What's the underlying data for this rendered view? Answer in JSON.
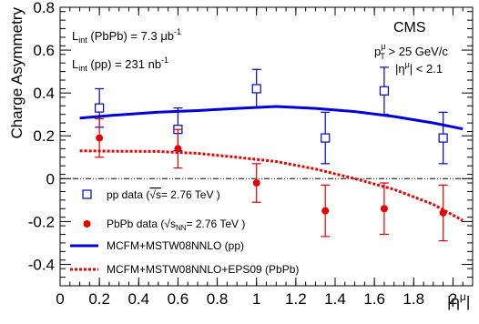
{
  "chart_data": {
    "type": "scatter",
    "xlabel": "|η^μ|",
    "ylabel": "Charge Asymmetry",
    "xlim": [
      0,
      2.1
    ],
    "ylim": [
      -0.5,
      0.8
    ],
    "xticks": [
      0,
      0.2,
      0.4,
      0.6,
      0.8,
      1,
      1.2,
      1.4,
      1.6,
      1.8,
      2
    ],
    "xtick_labels": [
      "0",
      "0.2",
      "0.4",
      "0.6",
      "0.8",
      "1",
      "1.2",
      "1.4",
      "1.6",
      "1.8",
      "2"
    ],
    "yticks": [
      -0.4,
      -0.2,
      0,
      0.2,
      0.4,
      0.6,
      0.8
    ],
    "ytick_labels": [
      "-0.4",
      "-0.2",
      "0",
      "0.2",
      "0.4",
      "0.6",
      "0.8"
    ],
    "reference_line_y": 0,
    "series": [
      {
        "name": "pp data (√s= 2.76 TeV )",
        "marker": "open-square",
        "color": "#0000cc",
        "points": [
          {
            "x": 0.2,
            "y": 0.33,
            "err": 0.09
          },
          {
            "x": 0.6,
            "y": 0.23,
            "err": 0.1
          },
          {
            "x": 1.0,
            "y": 0.42,
            "err": 0.09
          },
          {
            "x": 1.35,
            "y": 0.19,
            "err": 0.12
          },
          {
            "x": 1.65,
            "y": 0.41,
            "err": 0.11
          },
          {
            "x": 1.95,
            "y": 0.19,
            "err": 0.12
          }
        ]
      },
      {
        "name": "PbPb data (√sNN= 2.76 TeV )",
        "marker": "filled-circle",
        "color": "#e60000",
        "points": [
          {
            "x": 0.2,
            "y": 0.19,
            "err": 0.09
          },
          {
            "x": 0.6,
            "y": 0.14,
            "err": 0.09
          },
          {
            "x": 1.0,
            "y": -0.02,
            "err": 0.09
          },
          {
            "x": 1.35,
            "y": -0.15,
            "err": 0.12
          },
          {
            "x": 1.65,
            "y": -0.14,
            "err": 0.12
          },
          {
            "x": 1.95,
            "y": -0.16,
            "err": 0.13
          }
        ]
      },
      {
        "name": "MCFM+MSTW08NNLO (pp)",
        "line": "solid",
        "color": "#0000dd",
        "x": [
          0.1,
          0.3,
          0.5,
          0.7,
          0.9,
          1.1,
          1.3,
          1.5,
          1.7,
          1.9,
          2.05
        ],
        "y": [
          0.283,
          0.298,
          0.31,
          0.318,
          0.328,
          0.337,
          0.328,
          0.313,
          0.29,
          0.26,
          0.232
        ]
      },
      {
        "name": "MCFM+MSTW08NNLO+EPS09 (PbPb)",
        "line": "dashed",
        "color": "#ee0000",
        "x": [
          0.1,
          0.3,
          0.5,
          0.7,
          0.9,
          1.1,
          1.3,
          1.5,
          1.7,
          1.9,
          2.05
        ],
        "y": [
          0.13,
          0.128,
          0.127,
          0.118,
          0.1,
          0.08,
          0.045,
          0.0,
          -0.05,
          -0.12,
          -0.195
        ]
      }
    ],
    "annotations": {
      "lumi_pbpb": {
        "main": "L",
        "sub": "int",
        "rest": " (PbPb) = 7.3 μb",
        "sup": "-1"
      },
      "lumi_pp": {
        "main": "L",
        "sub": "int",
        "rest": " (pp) = 231 nb",
        "sup": "-1"
      },
      "experiment": "CMS",
      "cut_pt": {
        "main": "p",
        "sup": "μ",
        "sub": "T",
        "rest": " > 25 GeV/c"
      },
      "cut_eta": "|η^μ| < 2.1"
    },
    "legend_position": "bottom-left"
  }
}
